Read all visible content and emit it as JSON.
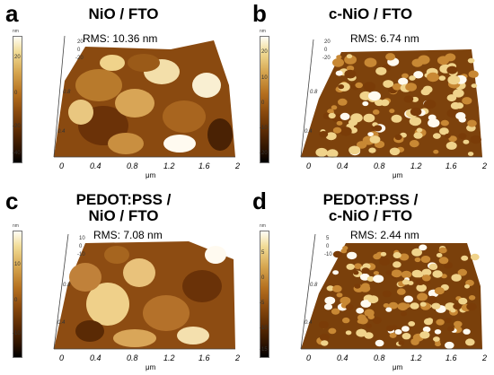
{
  "figure": {
    "colors": {
      "highlight": "#fffaf0",
      "light": "#f0d38b",
      "mid": "#c88834",
      "dark": "#7a3c08",
      "shadow": "#2a1200"
    },
    "panels": [
      {
        "letter": "a",
        "title_lines": [
          "NiO / FTO"
        ],
        "rms": "RMS: 10.36 nm",
        "cbar_unit": "nm",
        "cbar_ticks": [
          "20",
          "0",
          "-20",
          "-40"
        ],
        "x_ticks": [
          "0",
          "0.4",
          "0.8",
          "1.2",
          "1.6",
          "2"
        ],
        "x_unit": "μm",
        "y_ticks": [
          "0.4",
          "0.8"
        ],
        "z_ticks": [
          "20",
          "0",
          "-20"
        ],
        "rms_value_nm": 10.36
      },
      {
        "letter": "b",
        "title_lines": [
          "c-NiO / FTO"
        ],
        "rms": "RMS: 6.74 nm",
        "cbar_unit": "nm",
        "cbar_ticks": [
          "20",
          "10",
          "0",
          "-10",
          "-20"
        ],
        "x_ticks": [
          "0",
          "0.4",
          "0.8",
          "1.2",
          "1.6",
          "2"
        ],
        "x_unit": "μm",
        "y_ticks": [
          "0.4",
          "0.8"
        ],
        "z_ticks": [
          "20",
          "0",
          "-20"
        ],
        "rms_value_nm": 6.74
      },
      {
        "letter": "c",
        "title_lines": [
          "PEDOT:PSS /",
          "NiO / FTO"
        ],
        "rms": "RMS: 7.08 nm",
        "cbar_unit": "nm",
        "cbar_ticks": [
          "10",
          "0",
          "-10"
        ],
        "x_ticks": [
          "0",
          "0.4",
          "0.8",
          "1.2",
          "1.6",
          "2"
        ],
        "x_unit": "μm",
        "y_ticks": [
          "0.4",
          "0.8"
        ],
        "z_ticks": [
          "10",
          "0",
          "-10"
        ],
        "rms_value_nm": 7.08
      },
      {
        "letter": "d",
        "title_lines": [
          "PEDOT:PSS /",
          "c-NiO / FTO"
        ],
        "rms": "RMS: 2.44 nm",
        "cbar_unit": "nm",
        "cbar_ticks": [
          "5",
          "0",
          "-5",
          "-10",
          "-15"
        ],
        "x_ticks": [
          "0",
          "0.4",
          "0.8",
          "1.2",
          "1.6",
          "2"
        ],
        "x_unit": "μm",
        "y_ticks": [
          "0.4",
          "0.8"
        ],
        "z_ticks": [
          "5",
          "0",
          "-10"
        ],
        "rms_value_nm": 2.44
      }
    ]
  }
}
